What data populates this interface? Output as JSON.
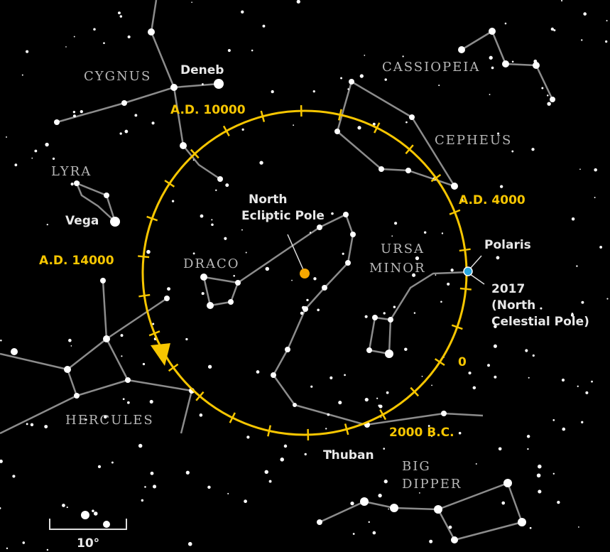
{
  "constellations": [
    "CYGNUS",
    "CASSIOPEIA",
    "CEPHEUS",
    "LYRA",
    "DRACO",
    [
      "URSA",
      "MINOR"
    ],
    "HERCULES",
    [
      "BIG",
      "DIPPER"
    ]
  ],
  "stars": [
    "Deneb",
    "Vega",
    "Polaris",
    "Thuban"
  ],
  "dates": [
    "A.D. 10000",
    "A.D. 4000",
    "A.D. 14000",
    "0",
    "2000 B.C.",
    [
      "2017",
      "(North",
      "Celestial Pole)"
    ]
  ],
  "ecliptic_pole": [
    "North",
    "Ecliptic Pole"
  ],
  "scale": "10°"
}
